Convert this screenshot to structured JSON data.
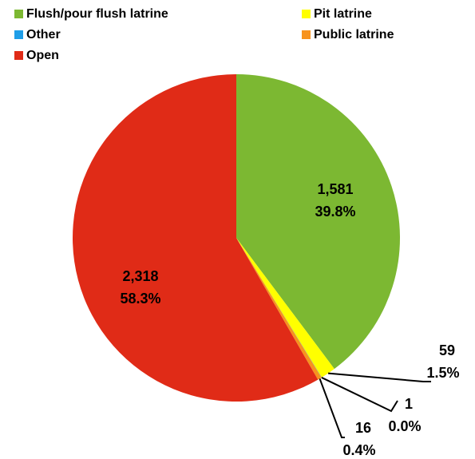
{
  "chart_data": {
    "type": "pie",
    "categories": [
      "Flush/pour flush latrine",
      "Pit latrine",
      "Other",
      "Public latrine",
      "Open"
    ],
    "values": [
      1581,
      59,
      1,
      16,
      2318
    ],
    "value_labels": [
      "1,581",
      "59",
      "1",
      "16",
      "2,318"
    ],
    "percent_labels": [
      "39.8%",
      "1.5%",
      "0.0%",
      "0.4%",
      "58.3%"
    ],
    "colors": [
      "#7cb832",
      "#ffff00",
      "#1f9ee8",
      "#f7931e",
      "#e02b17"
    ],
    "legend": "top"
  }
}
